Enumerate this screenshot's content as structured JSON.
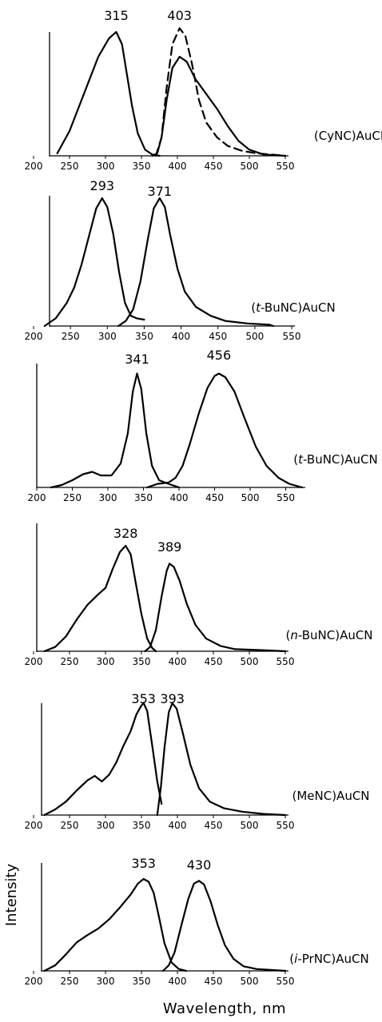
{
  "chart_data": {
    "type": "line",
    "xlabel": "Wavelength, nm",
    "ylabel": "Intensity",
    "x_ticks": [
      "200",
      "250",
      "300",
      "350",
      "400",
      "450",
      "500",
      "550"
    ],
    "panels": [
      {
        "compound_pre": "(CyNC)AuCN",
        "compound_it": "",
        "compound_post": "",
        "xlim": [
          200,
          550
        ],
        "peak_labels": [
          "315",
          "403"
        ],
        "series": [
          {
            "dash": false,
            "points": [
              [
                233,
                0.02
              ],
              [
                250,
                0.2
              ],
              [
                270,
                0.5
              ],
              [
                290,
                0.8
              ],
              [
                305,
                0.95
              ],
              [
                315,
                1.0
              ],
              [
                323,
                0.9
              ],
              [
                330,
                0.65
              ],
              [
                337,
                0.4
              ],
              [
                345,
                0.18
              ],
              [
                355,
                0.05
              ],
              [
                365,
                0.01
              ],
              [
                375,
                0.0
              ]
            ]
          },
          {
            "dash": false,
            "points": [
              [
                365,
                0.0
              ],
              [
                372,
                0.02
              ],
              [
                378,
                0.15
              ],
              [
                385,
                0.45
              ],
              [
                393,
                0.71
              ],
              [
                403,
                0.8
              ],
              [
                413,
                0.76
              ],
              [
                425,
                0.62
              ],
              [
                440,
                0.5
              ],
              [
                455,
                0.38
              ],
              [
                470,
                0.24
              ],
              [
                485,
                0.12
              ],
              [
                500,
                0.05
              ],
              [
                520,
                0.01
              ],
              [
                550,
                0.0
              ]
            ]
          },
          {
            "dash": true,
            "points": [
              [
                370,
                0.0
              ],
              [
                378,
                0.15
              ],
              [
                385,
                0.55
              ],
              [
                393,
                0.9
              ],
              [
                403,
                1.03
              ],
              [
                411,
                0.97
              ],
              [
                420,
                0.75
              ],
              [
                430,
                0.45
              ],
              [
                440,
                0.27
              ],
              [
                455,
                0.15
              ],
              [
                470,
                0.08
              ],
              [
                490,
                0.04
              ],
              [
                510,
                0.02
              ],
              [
                530,
                0.01
              ],
              [
                550,
                0.0
              ]
            ]
          }
        ]
      },
      {
        "compound_pre": "(",
        "compound_it": "t",
        "compound_post": "-BuNC)AuCN",
        "xlim": [
          200,
          550
        ],
        "peak_labels": [
          "293",
          "371"
        ],
        "series": [
          {
            "dash": false,
            "points": [
              [
                215,
                0.0
              ],
              [
                230,
                0.06
              ],
              [
                245,
                0.18
              ],
              [
                255,
                0.3
              ],
              [
                265,
                0.48
              ],
              [
                275,
                0.7
              ],
              [
                285,
                0.92
              ],
              [
                293,
                1.0
              ],
              [
                300,
                0.93
              ],
              [
                308,
                0.72
              ],
              [
                316,
                0.42
              ],
              [
                324,
                0.18
              ],
              [
                332,
                0.08
              ],
              [
                340,
                0.06
              ],
              [
                350,
                0.05
              ]
            ]
          },
          {
            "dash": false,
            "points": [
              [
                315,
                0.0
              ],
              [
                325,
                0.04
              ],
              [
                335,
                0.13
              ],
              [
                345,
                0.35
              ],
              [
                355,
                0.68
              ],
              [
                363,
                0.92
              ],
              [
                371,
                1.0
              ],
              [
                378,
                0.93
              ],
              [
                385,
                0.72
              ],
              [
                395,
                0.45
              ],
              [
                405,
                0.27
              ],
              [
                420,
                0.15
              ],
              [
                440,
                0.08
              ],
              [
                460,
                0.04
              ],
              [
                490,
                0.02
              ],
              [
                520,
                0.01
              ],
              [
                525,
                0.0
              ]
            ]
          }
        ]
      },
      {
        "compound_pre": "(",
        "compound_it": "t",
        "compound_post": "-BuNC)AuCN",
        "xlim": [
          200,
          573
        ],
        "peak_labels": [
          "341",
          "456"
        ],
        "series": [
          {
            "dash": false,
            "points": [
              [
                220,
                0.0
              ],
              [
                235,
                0.02
              ],
              [
                250,
                0.06
              ],
              [
                265,
                0.11
              ],
              [
                278,
                0.13
              ],
              [
                290,
                0.1
              ],
              [
                305,
                0.1
              ],
              [
                318,
                0.2
              ],
              [
                328,
                0.45
              ],
              [
                335,
                0.8
              ],
              [
                341,
                0.95
              ],
              [
                347,
                0.82
              ],
              [
                354,
                0.45
              ],
              [
                362,
                0.18
              ],
              [
                372,
                0.06
              ],
              [
                385,
                0.03
              ],
              [
                395,
                0.01
              ],
              [
                400,
                0.0
              ]
            ]
          },
          {
            "dash": false,
            "points": [
              [
                355,
                0.0
              ],
              [
                370,
                0.03
              ],
              [
                385,
                0.04
              ],
              [
                395,
                0.08
              ],
              [
                405,
                0.18
              ],
              [
                415,
                0.36
              ],
              [
                428,
                0.62
              ],
              [
                440,
                0.83
              ],
              [
                450,
                0.93
              ],
              [
                456,
                0.95
              ],
              [
                465,
                0.92
              ],
              [
                478,
                0.8
              ],
              [
                492,
                0.58
              ],
              [
                508,
                0.34
              ],
              [
                523,
                0.18
              ],
              [
                540,
                0.08
              ],
              [
                555,
                0.03
              ],
              [
                573,
                0.0
              ]
            ]
          }
        ]
      },
      {
        "compound_pre": "(",
        "compound_it": "n",
        "compound_post": "-BuNC)AuCN",
        "xlim": [
          200,
          550
        ],
        "peak_labels": [
          "328",
          "389"
        ],
        "series": [
          {
            "dash": false,
            "points": [
              [
                215,
                0.0
              ],
              [
                230,
                0.04
              ],
              [
                245,
                0.14
              ],
              [
                260,
                0.3
              ],
              [
                275,
                0.44
              ],
              [
                290,
                0.54
              ],
              [
                300,
                0.6
              ],
              [
                310,
                0.78
              ],
              [
                320,
                0.94
              ],
              [
                328,
                1.0
              ],
              [
                335,
                0.92
              ],
              [
                342,
                0.65
              ],
              [
                350,
                0.35
              ],
              [
                358,
                0.12
              ],
              [
                365,
                0.03
              ],
              [
                370,
                0.0
              ]
            ]
          },
          {
            "dash": false,
            "points": [
              [
                355,
                0.0
              ],
              [
                362,
                0.04
              ],
              [
                370,
                0.2
              ],
              [
                378,
                0.52
              ],
              [
                385,
                0.76
              ],
              [
                389,
                0.83
              ],
              [
                395,
                0.8
              ],
              [
                403,
                0.67
              ],
              [
                413,
                0.45
              ],
              [
                425,
                0.25
              ],
              [
                440,
                0.12
              ],
              [
                460,
                0.05
              ],
              [
                480,
                0.02
              ],
              [
                520,
                0.01
              ],
              [
                550,
                0.0
              ]
            ]
          }
        ]
      },
      {
        "compound_pre": "(MeNC)AuCN",
        "compound_it": "",
        "compound_post": "",
        "xlim": [
          200,
          550
        ],
        "peak_labels": [
          "353",
          "393"
        ],
        "series": [
          {
            "dash": false,
            "points": [
              [
                215,
                0.0
              ],
              [
                230,
                0.05
              ],
              [
                245,
                0.12
              ],
              [
                260,
                0.22
              ],
              [
                275,
                0.31
              ],
              [
                285,
                0.35
              ],
              [
                295,
                0.3
              ],
              [
                305,
                0.36
              ],
              [
                315,
                0.47
              ],
              [
                325,
                0.62
              ],
              [
                335,
                0.75
              ],
              [
                343,
                0.9
              ],
              [
                350,
                0.98
              ],
              [
                353,
                1.0
              ],
              [
                358,
                0.93
              ],
              [
                365,
                0.62
              ],
              [
                372,
                0.3
              ],
              [
                378,
                0.1
              ]
            ]
          },
          {
            "dash": false,
            "points": [
              [
                372,
                0.0
              ],
              [
                377,
                0.25
              ],
              [
                382,
                0.6
              ],
              [
                388,
                0.92
              ],
              [
                393,
                1.0
              ],
              [
                399,
                0.95
              ],
              [
                408,
                0.72
              ],
              [
                418,
                0.45
              ],
              [
                430,
                0.24
              ],
              [
                445,
                0.12
              ],
              [
                465,
                0.06
              ],
              [
                490,
                0.03
              ],
              [
                520,
                0.01
              ],
              [
                550,
                0.0
              ]
            ]
          }
        ]
      },
      {
        "compound_pre": "(",
        "compound_it": "i",
        "compound_post": "-PrNC)AuCN",
        "xlim": [
          200,
          550
        ],
        "peak_labels": [
          "353",
          "430"
        ],
        "series": [
          {
            "dash": false,
            "points": [
              [
                215,
                0.0
              ],
              [
                230,
                0.06
              ],
              [
                245,
                0.18
              ],
              [
                260,
                0.31
              ],
              [
                275,
                0.39
              ],
              [
                290,
                0.46
              ],
              [
                305,
                0.56
              ],
              [
                320,
                0.69
              ],
              [
                335,
                0.83
              ],
              [
                345,
                0.95
              ],
              [
                353,
                1.0
              ],
              [
                360,
                0.97
              ],
              [
                367,
                0.85
              ],
              [
                374,
                0.6
              ],
              [
                382,
                0.3
              ],
              [
                392,
                0.09
              ],
              [
                402,
                0.02
              ],
              [
                412,
                0.0
              ]
            ]
          },
          {
            "dash": false,
            "points": [
              [
                380,
                0.0
              ],
              [
                388,
                0.06
              ],
              [
                396,
                0.2
              ],
              [
                405,
                0.48
              ],
              [
                415,
                0.78
              ],
              [
                423,
                0.95
              ],
              [
                430,
                0.98
              ],
              [
                437,
                0.94
              ],
              [
                446,
                0.76
              ],
              [
                456,
                0.5
              ],
              [
                466,
                0.28
              ],
              [
                478,
                0.13
              ],
              [
                492,
                0.05
              ],
              [
                510,
                0.02
              ],
              [
                530,
                0.01
              ],
              [
                550,
                0.0
              ]
            ]
          }
        ]
      }
    ]
  }
}
